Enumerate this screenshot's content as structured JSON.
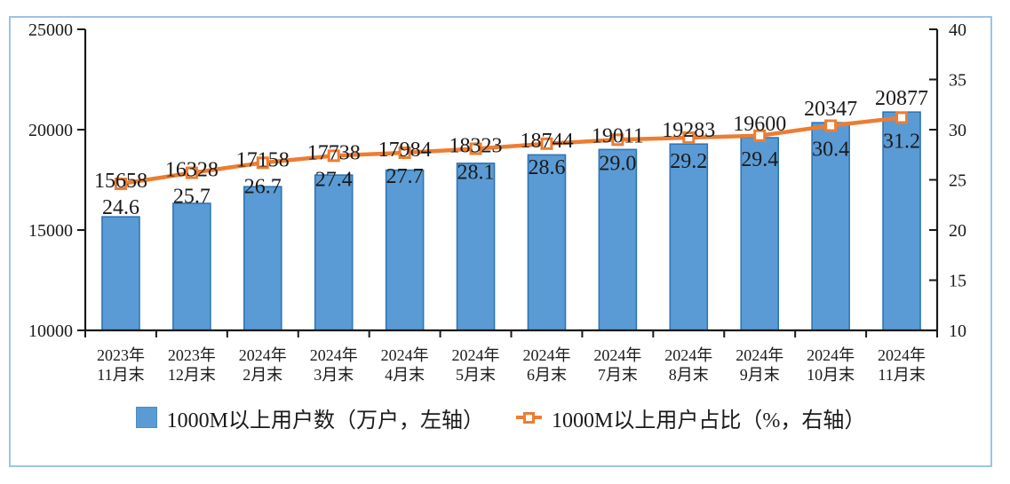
{
  "window": {
    "background": "#ffffff",
    "frame_border_color": "#9DC3E6",
    "text_color": "#1a1a1a"
  },
  "chart_data": {
    "type": "combo-bar-line",
    "title": "",
    "grid": false,
    "legend_position": "bottom",
    "categories": [
      [
        "2023年",
        "11月末"
      ],
      [
        "2023年",
        "12月末"
      ],
      [
        "2024年",
        "2月末"
      ],
      [
        "2024年",
        "3月末"
      ],
      [
        "2024年",
        "4月末"
      ],
      [
        "2024年",
        "5月末"
      ],
      [
        "2024年",
        "6月末"
      ],
      [
        "2024年",
        "7月末"
      ],
      [
        "2024年",
        "8月末"
      ],
      [
        "2024年",
        "9月末"
      ],
      [
        "2024年",
        "10月末"
      ],
      [
        "2024年",
        "11月末"
      ]
    ],
    "series": [
      {
        "name": "1000M以上用户数（万户，左轴）",
        "type": "bar",
        "axis": "left",
        "color": "#5B9BD5",
        "border_color": "#2E75B6",
        "values": [
          15658,
          16328,
          17158,
          17738,
          17984,
          18323,
          18744,
          19011,
          19283,
          19600,
          20347,
          20877
        ]
      },
      {
        "name": "1000M以上用户占比（%，右轴）",
        "type": "line",
        "axis": "right",
        "color": "#ED7D31",
        "marker": "square-open",
        "values": [
          24.6,
          25.7,
          26.7,
          27.4,
          27.7,
          28.1,
          28.6,
          29.0,
          29.2,
          29.4,
          30.4,
          31.2
        ]
      }
    ],
    "left_axis": {
      "min": 10000,
      "max": 25000,
      "tick_step": 5000,
      "ticks": [
        10000,
        15000,
        20000,
        25000
      ]
    },
    "right_axis": {
      "min": 10,
      "max": 40,
      "tick_step": 5,
      "ticks": [
        10,
        15,
        20,
        25,
        30,
        35,
        40
      ]
    }
  },
  "legend": {
    "items": [
      {
        "label": "1000M以上用户数（万户，左轴）",
        "swatch": "bar-square",
        "color": "#5B9BD5"
      },
      {
        "label": "1000M以上用户占比（%，右轴）",
        "swatch": "line-marker",
        "color": "#ED7D31"
      }
    ]
  }
}
